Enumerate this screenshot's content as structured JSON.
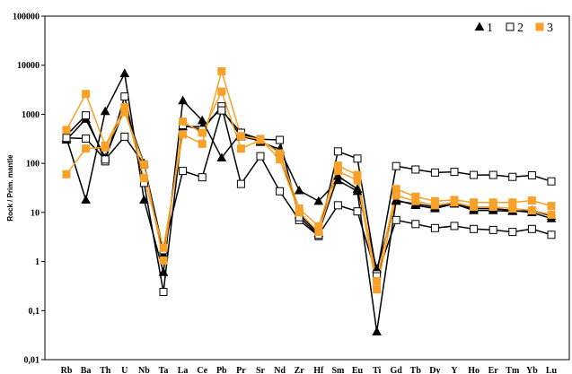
{
  "chart_data": {
    "type": "line",
    "title": "",
    "xlabel": "",
    "ylabel": "Rock / Prim. mantle",
    "yscale": "log",
    "ylim": [
      0.01,
      100000
    ],
    "y_ticks": [
      "0,01",
      "0,1",
      "1",
      "10",
      "100",
      "1000",
      "10000",
      "100000"
    ],
    "y_tick_values": [
      0.01,
      0.1,
      1,
      10,
      100,
      1000,
      10000,
      100000
    ],
    "grid": false,
    "legend_position": "top-right",
    "categories": [
      "Rb",
      "Ba",
      "Th",
      "U",
      "Nb",
      "Ta",
      "La",
      "Ce",
      "Pb",
      "Pr",
      "Sr",
      "Nd",
      "Zr",
      "Hf",
      "Sm",
      "Eu",
      "Ti",
      "Gd",
      "Tb",
      "Dy",
      "Y",
      "Ho",
      "Er",
      "Tm",
      "Yb",
      "Lu"
    ],
    "series": [
      {
        "name": "1",
        "marker": "triangle",
        "color": "#000000",
        "line_color": "#000000",
        "profiles": [
          [
            330,
            18,
            1150,
            6800,
            18,
            0.6,
            1900,
            750,
            130,
            420,
            270,
            195,
            28,
            17,
            45,
            27,
            0.037,
            18,
            14,
            12,
            15,
            11,
            11,
            10.5,
            11,
            8.5
          ],
          [
            300,
            800,
            130,
            1300,
            100,
            1.4,
            560,
            560,
            1300,
            350,
            290,
            170,
            9,
            3.8,
            55,
            30,
            0.7,
            17,
            15,
            13,
            15,
            12,
            12,
            11,
            10,
            7.5
          ]
        ]
      },
      {
        "name": "2",
        "marker": "square-open",
        "color": "#000000",
        "line_color": "#000000",
        "profiles": [
          [
            370,
            950,
            110,
            2300,
            40,
            0.24,
            600,
            480,
            1450,
            38,
            140,
            27,
            7,
            3.3,
            175,
            125,
            0.55,
            88,
            75,
            65,
            67,
            58,
            58,
            53,
            57,
            43
          ],
          [
            330,
            320,
            120,
            350,
            95,
            1.7,
            70,
            52,
            1200,
            420,
            310,
            300,
            8,
            3.5,
            14,
            10.5,
            0.5,
            7,
            5.8,
            4.8,
            5.3,
            4.6,
            4.4,
            4.0,
            4.6,
            3.5
          ]
        ]
      },
      {
        "name": "3",
        "marker": "square",
        "color": "#f7a128",
        "line_color": "#f7a128",
        "profiles": [
          [
            480,
            2600,
            230,
            1400,
            50,
            1.9,
            390,
            250,
            7500,
            360,
            310,
            120,
            10,
            4.0,
            70,
            45,
            0.27,
            22,
            17,
            14,
            16,
            13,
            13,
            12,
            11,
            9
          ],
          [
            60,
            200,
            210,
            1100,
            95,
            1.05,
            710,
            420,
            2900,
            200,
            300,
            160,
            12,
            5.2,
            90,
            58,
            0.4,
            30,
            21,
            17,
            18,
            16,
            16,
            16,
            17.5,
            13.5
          ]
        ]
      }
    ]
  }
}
